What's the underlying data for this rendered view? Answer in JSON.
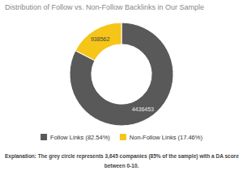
{
  "chart_data": {
    "type": "pie",
    "title": "Distribution of Follow vs. Non-Follow Backlinks in Our Sample",
    "categories": [
      "Follow Links (82.54%)",
      "Non-Follow Links (17.46%)"
    ],
    "values": [
      82.54,
      17.46
    ],
    "colors": [
      "#595959",
      "#F5C518"
    ],
    "annotations": [
      "4436453",
      "938562"
    ],
    "caption": [
      "Explanation: The grey circle represents 3,645 companies (85% of the sample) with a DA score",
      "between 0-10."
    ],
    "legend": "bottom"
  }
}
